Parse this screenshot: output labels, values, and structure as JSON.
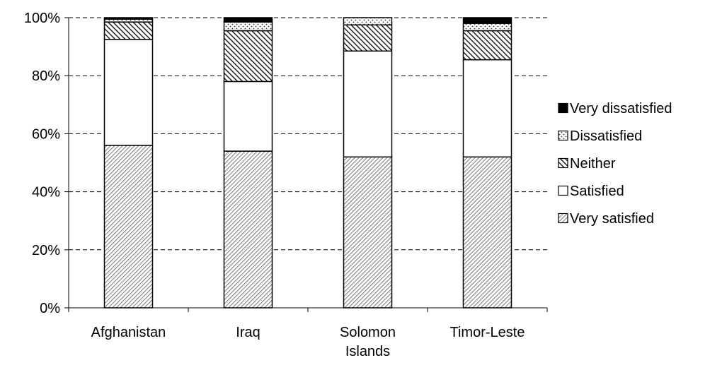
{
  "chart_data": {
    "type": "bar",
    "stacked": true,
    "percent": true,
    "categories": [
      "Afghanistan",
      "Iraq",
      "Solomon Islands",
      "Timor-Leste"
    ],
    "category_lines": [
      [
        "Afghanistan"
      ],
      [
        "Iraq"
      ],
      [
        "Solomon",
        "Islands"
      ],
      [
        "Timor-Leste"
      ]
    ],
    "series": [
      {
        "name": "Very satisfied",
        "values": [
          56,
          54,
          52,
          52
        ],
        "fill": "diag-light"
      },
      {
        "name": "Satisfied",
        "values": [
          36.5,
          24,
          36.5,
          33.5
        ],
        "fill": "white"
      },
      {
        "name": "Neither",
        "values": [
          6,
          17.5,
          9,
          10
        ],
        "fill": "diag-dark"
      },
      {
        "name": "Dissatisfied",
        "values": [
          1,
          3,
          2.5,
          2.5
        ],
        "fill": "dots"
      },
      {
        "name": "Very dissatisfied",
        "values": [
          0.5,
          1.5,
          0,
          2
        ],
        "fill": "black"
      }
    ],
    "ylim": [
      0,
      100
    ],
    "yticks": [
      "0%",
      "20%",
      "40%",
      "60%",
      "80%",
      "100%"
    ],
    "grid": "dashed-horizontal",
    "legend_position": "right"
  }
}
